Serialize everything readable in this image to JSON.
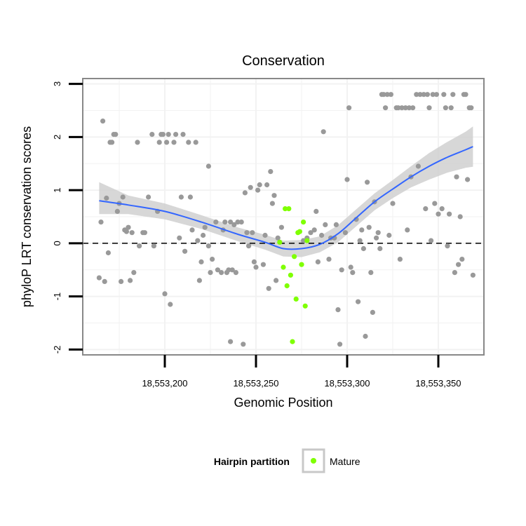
{
  "chart_data": {
    "type": "scatter",
    "title": "Conservation",
    "xlabel": "Genomic Position",
    "ylabel": "phyloP LRT conservation scores",
    "xlim": [
      18553155,
      18553375
    ],
    "ylim": [
      -2.1,
      3.1
    ],
    "x_ticks": [
      18553200,
      18553250,
      18553300,
      18553350
    ],
    "x_tick_labels": [
      "18,553,200",
      "18,553,250",
      "18,553,300",
      "18,553,350"
    ],
    "y_ticks": [
      -2,
      -1,
      0,
      1,
      2,
      3
    ],
    "y_tick_labels": [
      "-2",
      "-1",
      "0",
      "1",
      "2",
      "3"
    ],
    "reference_line_y": 0,
    "legend": {
      "title": "Hairpin partition",
      "entries": [
        {
          "label": "Mature",
          "color": "#7fff00"
        }
      ]
    },
    "colors": {
      "other": "#999999",
      "mature": "#7fff00",
      "smooth": "#3366ff",
      "band": "#d0d0d0",
      "panel_border": "#888888",
      "grid": "#f2f2f2"
    },
    "series": [
      {
        "name": "Other",
        "color": "#999999",
        "points": [
          [
            18553166,
            2.3
          ],
          [
            18553168,
            0.85
          ],
          [
            18553164,
            -0.65
          ],
          [
            18553167,
            -0.72
          ],
          [
            18553165,
            0.4
          ],
          [
            18553170,
            1.9
          ],
          [
            18553171,
            1.9
          ],
          [
            18553172,
            2.05
          ],
          [
            18553173,
            2.05
          ],
          [
            18553175,
            0.75
          ],
          [
            18553177,
            0.87
          ],
          [
            18553178,
            0.25
          ],
          [
            18553179,
            0.22
          ],
          [
            18553180,
            0.3
          ],
          [
            18553181,
            -0.7
          ],
          [
            18553183,
            -0.55
          ],
          [
            18553176,
            -0.72
          ],
          [
            18553169,
            -0.18
          ],
          [
            18553174,
            0.6
          ],
          [
            18553182,
            0.2
          ],
          [
            18553185,
            1.9
          ],
          [
            18553186,
            -0.05
          ],
          [
            18553188,
            0.2
          ],
          [
            18553189,
            0.2
          ],
          [
            18553191,
            0.87
          ],
          [
            18553193,
            2.05
          ],
          [
            18553194,
            -0.05
          ],
          [
            18553196,
            0.6
          ],
          [
            18553197,
            1.9
          ],
          [
            18553198,
            2.05
          ],
          [
            18553199,
            2.05
          ],
          [
            18553200,
            -0.95
          ],
          [
            18553201,
            1.9
          ],
          [
            18553202,
            2.05
          ],
          [
            18553203,
            -1.15
          ],
          [
            18553205,
            1.9
          ],
          [
            18553206,
            2.05
          ],
          [
            18553208,
            0.1
          ],
          [
            18553209,
            0.87
          ],
          [
            18553210,
            2.05
          ],
          [
            18553211,
            -0.15
          ],
          [
            18553213,
            1.9
          ],
          [
            18553214,
            0.87
          ],
          [
            18553215,
            0.25
          ],
          [
            18553217,
            1.9
          ],
          [
            18553218,
            0.05
          ],
          [
            18553219,
            -0.7
          ],
          [
            18553220,
            -0.35
          ],
          [
            18553221,
            0.15
          ],
          [
            18553222,
            0.3
          ],
          [
            18553224,
            -0.05
          ],
          [
            18553225,
            -0.55
          ],
          [
            18553226,
            -0.3
          ],
          [
            18553228,
            0.4
          ],
          [
            18553229,
            -0.5
          ],
          [
            18553231,
            -0.55
          ],
          [
            18553233,
            0.4
          ],
          [
            18553234,
            -0.55
          ],
          [
            18553235,
            -0.5
          ],
          [
            18553236,
            0.4
          ],
          [
            18553237,
            -0.5
          ],
          [
            18553238,
            0.35
          ],
          [
            18553239,
            -0.55
          ],
          [
            18553240,
            0.4
          ],
          [
            18553242,
            0.4
          ],
          [
            18553244,
            0.95
          ],
          [
            18553246,
            -0.05
          ],
          [
            18553247,
            1.05
          ],
          [
            18553248,
            0.2
          ],
          [
            18553250,
            -0.45
          ],
          [
            18553251,
            1.0
          ],
          [
            18553252,
            1.1
          ],
          [
            18553254,
            -0.4
          ],
          [
            18553256,
            1.1
          ],
          [
            18553258,
            1.35
          ],
          [
            18553259,
            0.75
          ],
          [
            18553260,
            0.9
          ],
          [
            18553262,
            0.1
          ],
          [
            18553264,
            0.3
          ],
          [
            18553224,
            1.45
          ],
          [
            18553232,
            0.25
          ],
          [
            18553245,
            0.2
          ],
          [
            18553249,
            -0.35
          ],
          [
            18553255,
            0.15
          ],
          [
            18553257,
            -0.85
          ],
          [
            18553261,
            -0.7
          ],
          [
            18553236,
            -1.85
          ],
          [
            18553243,
            -1.9
          ],
          [
            18553276,
            0.05
          ],
          [
            18553278,
            0.1
          ],
          [
            18553280,
            0.2
          ],
          [
            18553282,
            0.25
          ],
          [
            18553283,
            0.6
          ],
          [
            18553284,
            -0.35
          ],
          [
            18553286,
            0.15
          ],
          [
            18553287,
            2.1
          ],
          [
            18553288,
            0.35
          ],
          [
            18553290,
            -0.3
          ],
          [
            18553291,
            0.1
          ],
          [
            18553293,
            0.1
          ],
          [
            18553294,
            0.35
          ],
          [
            18553295,
            -1.25
          ],
          [
            18553296,
            -1.9
          ],
          [
            18553297,
            -0.5
          ],
          [
            18553299,
            0.2
          ],
          [
            18553300,
            1.2
          ],
          [
            18553301,
            2.55
          ],
          [
            18553302,
            -0.45
          ],
          [
            18553303,
            -0.55
          ],
          [
            18553305,
            0.45
          ],
          [
            18553306,
            -1.1
          ],
          [
            18553307,
            0.05
          ],
          [
            18553308,
            0.25
          ],
          [
            18553309,
            -0.1
          ],
          [
            18553310,
            -1.75
          ],
          [
            18553311,
            1.15
          ],
          [
            18553312,
            0.3
          ],
          [
            18553313,
            -0.55
          ],
          [
            18553314,
            -1.3
          ],
          [
            18553315,
            0.78
          ],
          [
            18553316,
            0.1
          ],
          [
            18553317,
            0.2
          ],
          [
            18553318,
            -0.1
          ],
          [
            18553319,
            2.8
          ],
          [
            18553320,
            2.8
          ],
          [
            18553321,
            2.55
          ],
          [
            18553322,
            2.8
          ],
          [
            18553323,
            0.15
          ],
          [
            18553324,
            2.8
          ],
          [
            18553325,
            0.75
          ],
          [
            18553327,
            2.55
          ],
          [
            18553328,
            2.55
          ],
          [
            18553329,
            -0.3
          ],
          [
            18553330,
            2.55
          ],
          [
            18553332,
            2.55
          ],
          [
            18553333,
            0.25
          ],
          [
            18553334,
            2.55
          ],
          [
            18553335,
            1.25
          ],
          [
            18553336,
            2.55
          ],
          [
            18553338,
            2.8
          ],
          [
            18553339,
            1.45
          ],
          [
            18553340,
            2.8
          ],
          [
            18553342,
            2.8
          ],
          [
            18553343,
            0.65
          ],
          [
            18553344,
            2.8
          ],
          [
            18553345,
            2.55
          ],
          [
            18553346,
            0.05
          ],
          [
            18553347,
            2.8
          ],
          [
            18553348,
            0.75
          ],
          [
            18553349,
            2.8
          ],
          [
            18553350,
            0.55
          ],
          [
            18553352,
            0.65
          ],
          [
            18553353,
            2.8
          ],
          [
            18553354,
            2.55
          ],
          [
            18553355,
            -0.05
          ],
          [
            18553356,
            0.55
          ],
          [
            18553357,
            2.55
          ],
          [
            18553358,
            2.8
          ],
          [
            18553359,
            -0.55
          ],
          [
            18553360,
            1.25
          ],
          [
            18553361,
            -0.4
          ],
          [
            18553362,
            0.5
          ],
          [
            18553363,
            -0.3
          ],
          [
            18553364,
            2.8
          ],
          [
            18553365,
            2.8
          ],
          [
            18553366,
            1.2
          ],
          [
            18553367,
            2.55
          ],
          [
            18553368,
            2.55
          ],
          [
            18553369,
            -0.6
          ]
        ]
      },
      {
        "name": "Mature",
        "color": "#7fff00",
        "points": [
          [
            18553263,
            0.02
          ],
          [
            18553265,
            -0.45
          ],
          [
            18553266,
            0.65
          ],
          [
            18553267,
            -0.8
          ],
          [
            18553268,
            0.65
          ],
          [
            18553269,
            -0.6
          ],
          [
            18553270,
            -1.85
          ],
          [
            18553271,
            -0.25
          ],
          [
            18553272,
            -1.05
          ],
          [
            18553273,
            0.2
          ],
          [
            18553274,
            0.22
          ],
          [
            18553275,
            -0.4
          ],
          [
            18553276,
            0.4
          ],
          [
            18553277,
            -1.18
          ],
          [
            18553278,
            0.05
          ]
        ]
      }
    ],
    "smooth": {
      "method": "loess",
      "x": [
        18553164,
        18553180,
        18553200,
        18553220,
        18553240,
        18553255,
        18553265,
        18553275,
        18553285,
        18553295,
        18553305,
        18553315,
        18553325,
        18553335,
        18553345,
        18553355,
        18553365,
        18553369
      ],
      "y": [
        0.8,
        0.72,
        0.6,
        0.4,
        0.17,
        0.02,
        -0.1,
        -0.1,
        -0.02,
        0.18,
        0.48,
        0.78,
        1.02,
        1.25,
        1.45,
        1.62,
        1.76,
        1.82
      ],
      "lower": [
        0.55,
        0.55,
        0.45,
        0.27,
        0.04,
        -0.12,
        -0.25,
        -0.26,
        -0.17,
        0.02,
        0.32,
        0.62,
        0.85,
        1.05,
        1.2,
        1.33,
        1.42,
        1.44
      ],
      "upper": [
        1.15,
        0.9,
        0.75,
        0.53,
        0.3,
        0.16,
        0.05,
        0.06,
        0.13,
        0.34,
        0.64,
        0.94,
        1.19,
        1.45,
        1.7,
        1.91,
        2.1,
        2.2
      ]
    }
  }
}
